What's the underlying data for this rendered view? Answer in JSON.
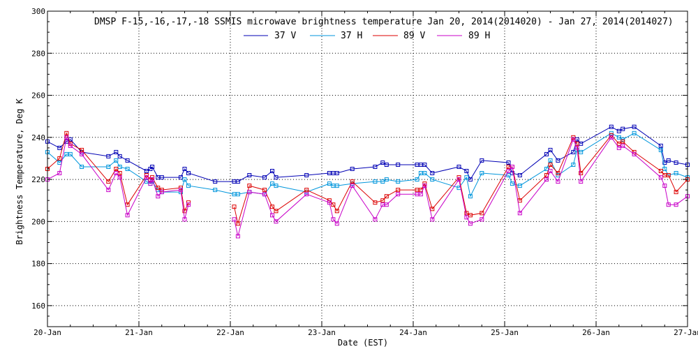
{
  "chart_data": {
    "type": "line",
    "title": "DMSP F-15,-16,-17,-18 SSMIS microwave brightness temperature Jan 20, 2014(2014020) - Jan 27, 2014(2014027)",
    "xlabel": "Date (EST)",
    "ylabel": "Brightness Temperature, Deg K",
    "xlim": [
      "2014-01-20 00:00",
      "2014-01-27 00:00"
    ],
    "ylim": [
      150,
      300
    ],
    "yticks": [
      160,
      180,
      200,
      220,
      240,
      260,
      280,
      300
    ],
    "xticks": [
      "20-Jan",
      "21-Jan",
      "22-Jan",
      "23-Jan",
      "24-Jan",
      "25-Jan",
      "26-Jan",
      "27-Jan"
    ],
    "grid": true,
    "legend_position": "top",
    "series": [
      {
        "name": "37 V",
        "color": "#0000b4",
        "x": [
          "2014-01-20 00:00",
          "2014-01-20 03:10",
          "2014-01-20 05:00",
          "2014-01-20 06:00",
          "2014-01-20 09:00",
          "2014-01-20 16:00",
          "2014-01-20 18:00",
          "2014-01-20 19:00",
          "2014-01-20 21:00",
          "2014-01-21 02:00",
          "2014-01-21 03:00",
          "2014-01-21 03:30",
          "2014-01-21 05:00",
          "2014-01-21 06:00",
          "2014-01-21 11:00",
          "2014-01-21 12:00",
          "2014-01-21 13:00",
          "2014-01-21 20:00",
          "2014-01-22 01:00",
          "2014-01-22 02:00",
          "2014-01-22 05:00",
          "2014-01-22 09:00",
          "2014-01-22 11:00",
          "2014-01-22 12:00",
          "2014-01-22 20:00",
          "2014-01-23 02:00",
          "2014-01-23 03:00",
          "2014-01-23 04:00",
          "2014-01-23 08:00",
          "2014-01-23 14:00",
          "2014-01-23 16:00",
          "2014-01-23 17:00",
          "2014-01-23 20:00",
          "2014-01-24 01:00",
          "2014-01-24 02:00",
          "2014-01-24 03:00",
          "2014-01-24 05:00",
          "2014-01-24 12:00",
          "2014-01-24 14:00",
          "2014-01-24 15:00",
          "2014-01-24 18:00",
          "2014-01-25 01:00",
          "2014-01-25 02:00",
          "2014-01-25 04:00",
          "2014-01-25 11:00",
          "2014-01-25 12:00",
          "2014-01-25 14:00",
          "2014-01-25 18:00",
          "2014-01-25 19:00",
          "2014-01-25 20:00",
          "2014-01-26 04:00",
          "2014-01-26 06:00",
          "2014-01-26 07:00",
          "2014-01-26 10:00",
          "2014-01-26 17:00",
          "2014-01-26 18:00",
          "2014-01-26 19:00",
          "2014-01-26 21:00",
          "2014-01-27 00:00"
        ],
        "y": [
          238,
          235,
          238,
          239,
          233,
          231,
          233,
          231,
          229,
          224,
          225,
          226,
          221,
          221,
          221,
          225,
          223,
          219,
          219,
          219,
          222,
          221,
          224,
          221,
          222,
          223,
          223,
          223,
          225,
          226,
          228,
          227,
          227,
          227,
          227,
          227,
          223,
          226,
          224,
          220,
          229,
          228,
          223,
          222,
          232,
          234,
          229,
          233,
          239,
          237,
          245,
          243,
          244,
          245,
          236,
          228,
          229,
          228,
          227
        ]
      },
      {
        "name": "37 H",
        "color": "#0096dc",
        "x": [
          "2014-01-20 00:00",
          "2014-01-20 03:10",
          "2014-01-20 05:00",
          "2014-01-20 06:00",
          "2014-01-20 09:00",
          "2014-01-20 16:00",
          "2014-01-20 18:00",
          "2014-01-20 19:00",
          "2014-01-20 21:00",
          "2014-01-21 02:00",
          "2014-01-21 03:00",
          "2014-01-21 03:30",
          "2014-01-21 05:00",
          "2014-01-21 06:00",
          "2014-01-21 11:00",
          "2014-01-21 12:00",
          "2014-01-21 13:00",
          "2014-01-21 20:00",
          "2014-01-22 01:00",
          "2014-01-22 02:00",
          "2014-01-22 05:00",
          "2014-01-22 09:00",
          "2014-01-22 11:00",
          "2014-01-22 12:00",
          "2014-01-22 20:00",
          "2014-01-23 02:00",
          "2014-01-23 03:00",
          "2014-01-23 04:00",
          "2014-01-23 08:00",
          "2014-01-23 14:00",
          "2014-01-23 16:00",
          "2014-01-23 17:00",
          "2014-01-23 20:00",
          "2014-01-24 01:00",
          "2014-01-24 02:00",
          "2014-01-24 03:00",
          "2014-01-24 05:00",
          "2014-01-24 12:00",
          "2014-01-24 14:00",
          "2014-01-24 15:00",
          "2014-01-24 18:00",
          "2014-01-25 01:00",
          "2014-01-25 02:00",
          "2014-01-25 04:00",
          "2014-01-25 11:00",
          "2014-01-25 12:00",
          "2014-01-25 14:00",
          "2014-01-25 18:00",
          "2014-01-25 19:00",
          "2014-01-25 20:00",
          "2014-01-26 04:00",
          "2014-01-26 06:00",
          "2014-01-26 07:00",
          "2014-01-26 10:00",
          "2014-01-26 17:00",
          "2014-01-26 18:00",
          "2014-01-26 19:00",
          "2014-01-26 21:00",
          "2014-01-27 00:00"
        ],
        "y": [
          233,
          228,
          232,
          232,
          226,
          226,
          229,
          226,
          225,
          219,
          218,
          219,
          215,
          214,
          214,
          220,
          217,
          215,
          213,
          213,
          214,
          213,
          218,
          217,
          214,
          218,
          217,
          217,
          218,
          219,
          219,
          220,
          219,
          220,
          223,
          223,
          220,
          216,
          221,
          212,
          223,
          222,
          218,
          217,
          225,
          229,
          222,
          227,
          234,
          233,
          242,
          240,
          239,
          242,
          234,
          225,
          222,
          223,
          221
        ]
      },
      {
        "name": "89 V",
        "color": "#dc0000",
        "x": [
          "2014-01-20 00:00",
          "2014-01-20 03:10",
          "2014-01-20 05:00",
          "2014-01-20 06:00",
          "2014-01-20 09:00",
          "2014-01-20 16:00",
          "2014-01-20 18:00",
          "2014-01-20 19:00",
          "2014-01-20 21:00",
          "2014-01-21 02:00",
          "2014-01-21 03:00",
          "2014-01-21 03:30",
          "2014-01-21 05:00",
          "2014-01-21 06:00",
          "2014-01-21 11:00",
          "2014-01-21 12:00",
          "2014-01-21 13:00",
          "2014-01-21 20:00",
          "2014-01-22 01:00",
          "2014-01-22 02:00",
          "2014-01-22 05:00",
          "2014-01-22 09:00",
          "2014-01-22 11:00",
          "2014-01-22 12:00",
          "2014-01-22 20:00",
          "2014-01-23 02:00",
          "2014-01-23 03:00",
          "2014-01-23 04:00",
          "2014-01-23 08:00",
          "2014-01-23 14:00",
          "2014-01-23 16:00",
          "2014-01-23 17:00",
          "2014-01-23 20:00",
          "2014-01-24 01:00",
          "2014-01-24 02:00",
          "2014-01-24 03:00",
          "2014-01-24 05:00",
          "2014-01-24 12:00",
          "2014-01-24 14:00",
          "2014-01-24 15:00",
          "2014-01-24 18:00",
          "2014-01-25 01:00",
          "2014-01-25 02:00",
          "2014-01-25 04:00",
          "2014-01-25 11:00",
          "2014-01-25 12:00",
          "2014-01-25 14:00",
          "2014-01-25 18:00",
          "2014-01-25 19:00",
          "2014-01-25 20:00",
          "2014-01-26 04:00",
          "2014-01-26 06:00",
          "2014-01-26 07:00",
          "2014-01-26 10:00",
          "2014-01-26 17:00",
          "2014-01-26 18:00",
          "2014-01-26 19:00",
          "2014-01-26 21:00",
          "2014-01-27 00:00"
        ],
        "y": [
          225,
          230,
          242,
          237,
          234,
          219,
          225,
          223,
          208,
          222,
          220,
          221,
          216,
          215,
          216,
          205,
          209,
          null,
          207,
          199,
          217,
          215,
          207,
          205,
          215,
          210,
          208,
          205,
          219,
          209,
          210,
          212,
          215,
          215,
          215,
          218,
          206,
          221,
          204,
          203,
          204,
          226,
          226,
          210,
          222,
          227,
          223,
          240,
          237,
          223,
          241,
          237,
          238,
          233,
          224,
          222,
          222,
          214,
          220
        ]
      },
      {
        "name": "89 H",
        "color": "#c800c8",
        "x": [
          "2014-01-20 00:00",
          "2014-01-20 03:10",
          "2014-01-20 05:00",
          "2014-01-20 06:00",
          "2014-01-20 09:00",
          "2014-01-20 16:00",
          "2014-01-20 18:00",
          "2014-01-20 19:00",
          "2014-01-20 21:00",
          "2014-01-21 02:00",
          "2014-01-21 03:00",
          "2014-01-21 03:30",
          "2014-01-21 05:00",
          "2014-01-21 06:00",
          "2014-01-21 11:00",
          "2014-01-21 12:00",
          "2014-01-21 13:00",
          "2014-01-21 20:00",
          "2014-01-22 01:00",
          "2014-01-22 02:00",
          "2014-01-22 05:00",
          "2014-01-22 09:00",
          "2014-01-22 11:00",
          "2014-01-22 12:00",
          "2014-01-22 20:00",
          "2014-01-23 02:00",
          "2014-01-23 03:00",
          "2014-01-23 04:00",
          "2014-01-23 08:00",
          "2014-01-23 14:00",
          "2014-01-23 16:00",
          "2014-01-23 17:00",
          "2014-01-23 20:00",
          "2014-01-24 01:00",
          "2014-01-24 02:00",
          "2014-01-24 03:00",
          "2014-01-24 05:00",
          "2014-01-24 12:00",
          "2014-01-24 14:00",
          "2014-01-24 15:00",
          "2014-01-24 18:00",
          "2014-01-25 01:00",
          "2014-01-25 02:00",
          "2014-01-25 04:00",
          "2014-01-25 11:00",
          "2014-01-25 12:00",
          "2014-01-25 14:00",
          "2014-01-25 18:00",
          "2014-01-25 19:00",
          "2014-01-25 20:00",
          "2014-01-26 04:00",
          "2014-01-26 06:00",
          "2014-01-26 07:00",
          "2014-01-26 10:00",
          "2014-01-26 17:00",
          "2014-01-26 18:00",
          "2014-01-26 19:00",
          "2014-01-26 21:00",
          "2014-01-27 00:00"
        ],
        "y": [
          220,
          223,
          240,
          236,
          232,
          215,
          223,
          221,
          203,
          221,
          218,
          220,
          212,
          214,
          215,
          201,
          208,
          null,
          201,
          193,
          214,
          213,
          203,
          200,
          213,
          209,
          201,
          199,
          217,
          201,
          208,
          208,
          213,
          213,
          213,
          217,
          201,
          220,
          202,
          199,
          201,
          224,
          226,
          204,
          220,
          224,
          219,
          239,
          235,
          219,
          240,
          235,
          236,
          232,
          221,
          217,
          208,
          208,
          212
        ]
      }
    ]
  }
}
